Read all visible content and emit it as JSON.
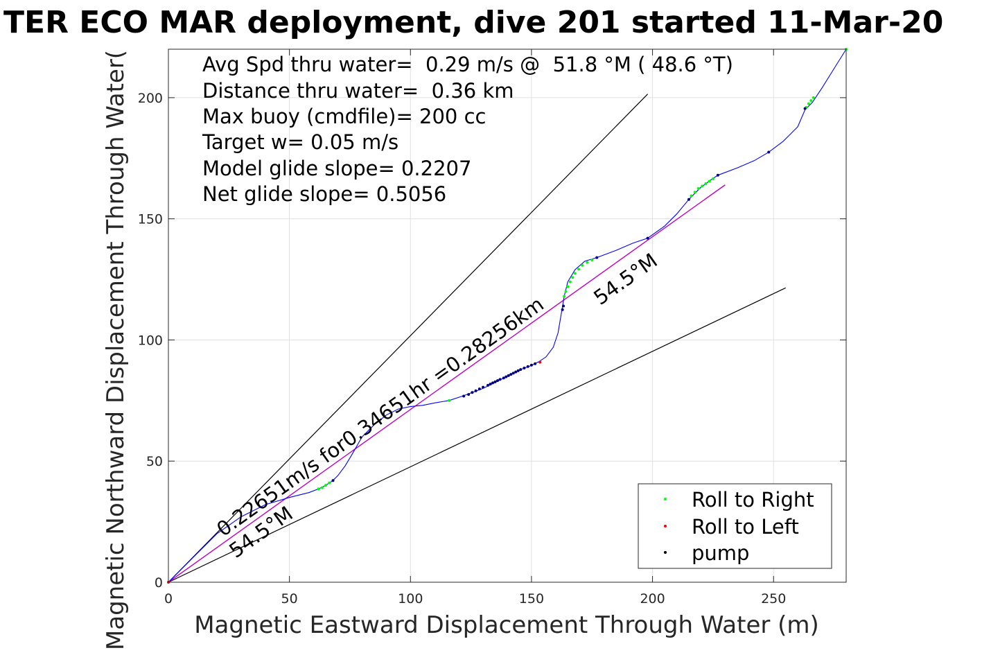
{
  "chart_data": {
    "type": "scatter",
    "title": "TER ECO MAR deployment, dive 201 started 11-Mar-20",
    "xlabel": "Magnetic Eastward Displacement Through Water (m)",
    "ylabel": "Magnetic Northward Displacement Through Water(",
    "xlim": [
      0,
      280
    ],
    "ylim": [
      0,
      220
    ],
    "xticks": [
      0,
      50,
      100,
      150,
      200,
      250
    ],
    "yticks": [
      0,
      50,
      100,
      150,
      200
    ],
    "xtick_labels": [
      "0",
      "50",
      "100",
      "150",
      "200",
      "250"
    ],
    "ytick_labels": [
      "0",
      "50",
      "100",
      "150",
      "200"
    ],
    "grid": true,
    "legend_position": "bottom-right",
    "info_lines": [
      "Avg Spd thru water=  0.29 m/s @  51.8 °M ( 48.6 °T)",
      "Distance thru water=  0.36 km",
      "Max buoy (cmdfile)= 200 cc",
      "Target w= 0.05 m/s",
      "Model glide slope= 0.2207",
      "Net glide slope= 0.5056"
    ],
    "annotations": {
      "speed_label": "0.22651m/s for0.34651hr =0.28256km",
      "heading_label_upper": "54.5°M",
      "heading_label_lower": "54.5°M"
    },
    "colors": {
      "track": "#0000ff",
      "net_line": "#bf00bf",
      "wedge": "#000000",
      "roll_right": "#00ff00",
      "roll_left": "#ff0000",
      "pump": "#000080",
      "grid": "#e0e0e0"
    },
    "track": {
      "x": [
        0,
        10,
        20,
        30,
        40,
        50,
        58,
        62,
        65,
        68,
        70,
        73,
        76,
        80,
        85,
        90,
        95,
        100,
        105,
        110,
        116,
        122,
        126,
        130,
        134,
        138,
        142,
        146,
        150,
        153,
        156,
        159,
        161,
        162.5,
        163.5,
        165,
        168,
        172,
        177,
        185,
        192,
        198,
        205,
        210,
        215,
        220,
        224,
        227,
        235,
        242,
        248,
        254,
        260,
        263,
        266,
        270,
        275,
        280
      ],
      "y": [
        0,
        10,
        20,
        27,
        32,
        35,
        37,
        38.5,
        40,
        42,
        44,
        48,
        53,
        60,
        65,
        69,
        71.5,
        72.5,
        73,
        74,
        75,
        77,
        78.5,
        80,
        82,
        84,
        86,
        88,
        89.5,
        91,
        93,
        97,
        103,
        112,
        118,
        124,
        129,
        132.5,
        134,
        137,
        140,
        142,
        147,
        152,
        158,
        163,
        166,
        168,
        171,
        174,
        177.5,
        182,
        188,
        195,
        198,
        204,
        212,
        220
      ]
    },
    "net_line": {
      "x": [
        0,
        230
      ],
      "y": [
        0,
        164
      ]
    },
    "wedge_lines": [
      {
        "x": [
          0,
          198
        ],
        "y": [
          0,
          201.5
        ]
      },
      {
        "x": [
          0,
          255
        ],
        "y": [
          0,
          121.5
        ]
      }
    ],
    "series": [
      {
        "name": "Roll to Right",
        "marker": "dot",
        "x": [
          0,
          62,
          63.5,
          65,
          66.5,
          68,
          116,
          163.5,
          164.2,
          165,
          166,
          167,
          168,
          169.5,
          171,
          173,
          175,
          216,
          217.5,
          219,
          220.5,
          222,
          223.5,
          225,
          263.5,
          264.5,
          265.5,
          266.5,
          280
        ],
        "y": [
          0,
          38.5,
          39,
          40,
          41,
          42,
          75,
          118,
          120,
          122,
          124,
          125.8,
          127.5,
          129.2,
          130.8,
          132,
          133,
          159.5,
          161,
          162.5,
          163.5,
          164.5,
          165.5,
          166.5,
          196,
          197.5,
          198.8,
          200,
          220
        ]
      },
      {
        "name": "Roll to Left",
        "marker": "dot",
        "x": [
          0,
          153.5
        ],
        "y": [
          0,
          90.8
        ]
      },
      {
        "name": "pump",
        "marker": "dot",
        "x": [
          68,
          122,
          124,
          125.5,
          127,
          128.5,
          130,
          132,
          133,
          134,
          135,
          136,
          137,
          138.5,
          139.5,
          140.5,
          141.5,
          142.5,
          143.5,
          144.5,
          145.5,
          147,
          148.5,
          150,
          151.5,
          162.8,
          163.2,
          177,
          198,
          215,
          227,
          248,
          263
        ],
        "y": [
          42,
          76.8,
          77.5,
          78.3,
          79,
          79.8,
          80.5,
          81.3,
          81.8,
          82.3,
          82.7,
          83.2,
          83.7,
          84.3,
          84.8,
          85.3,
          85.8,
          86.3,
          86.8,
          87.3,
          87.8,
          88.4,
          89,
          89.6,
          90.2,
          112.5,
          114,
          134,
          142,
          158,
          168,
          177.5,
          195.5
        ]
      }
    ]
  }
}
